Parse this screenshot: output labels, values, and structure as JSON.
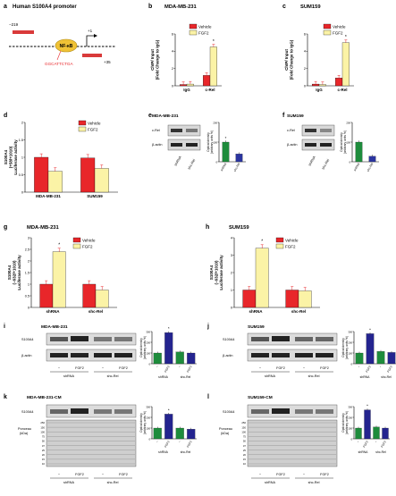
{
  "colors": {
    "red": "#e8262a",
    "yellow": "#fbf3a6",
    "green": "#1e8c3c",
    "blue": "#2b35a0",
    "navy": "#24248f",
    "promoter": "#f0c236",
    "primer": "#d93a3a",
    "site": "#e8262a"
  },
  "panel_a": {
    "letter": "a",
    "title": "Human S100A4 promoter",
    "pos_left": "−219",
    "pos_tss": "+1",
    "pos_right": "+35",
    "nfkb": "NF-κB",
    "site_seq": "GGCATTCTGA"
  },
  "legend": {
    "vehicle": "Vehicle",
    "fgf2": "FGF2"
  },
  "blot_labels": {
    "crel": "c-Rel",
    "actin": "β-actin",
    "s100a4": "S100A4",
    "ponceau": "Ponceau",
    "kda": "(kDa)",
    "minus": "−",
    "fgf2": "FGF2",
    "shrna": "shRNA",
    "shcrel": "shc-Rel"
  },
  "density_label": {
    "line1": "Optical density",
    "line2": "(arbitrary units %)"
  },
  "ladder": [
    "250",
    "150",
    "100",
    "75",
    "50",
    "37",
    "25",
    "20",
    "15",
    "10"
  ],
  "chart_data": [
    {
      "panel": "b",
      "type": "bar",
      "title": "MDA-MB-231",
      "ylabel": "ChIP/ Input (Fold Change to IgG)",
      "categories": [
        "IgG",
        "c-Rel"
      ],
      "ylim": [
        0,
        6
      ],
      "yticks": [
        0,
        2,
        4,
        6
      ],
      "series": [
        {
          "name": "Vehicle",
          "values": [
            0.15,
            1.2
          ]
        },
        {
          "name": "FGF2",
          "values": [
            0.2,
            4.5
          ]
        }
      ],
      "annotation": "*"
    },
    {
      "panel": "c",
      "type": "bar",
      "title": "SUM159",
      "ylabel": "ChIP/ Input (Fold Change to IgG)",
      "categories": [
        "IgG",
        "c-Rel"
      ],
      "ylim": [
        0,
        6
      ],
      "yticks": [
        0,
        2,
        4,
        6
      ],
      "series": [
        {
          "name": "Vehicle",
          "values": [
            0.2,
            0.9
          ]
        },
        {
          "name": "FGF2",
          "values": [
            0.15,
            5.0
          ]
        }
      ],
      "annotation": "*"
    },
    {
      "panel": "d",
      "type": "bar",
      "ylabel": "S100A4 (+58/+1010) Luciferase activity",
      "categories": [
        "MDA-MB-231",
        "SUM159"
      ],
      "ylim": [
        0,
        2
      ],
      "yticks": [
        0,
        0.5,
        1,
        1.5,
        2
      ],
      "series": [
        {
          "name": "Vehicle",
          "values": [
            1.0,
            0.98
          ]
        },
        {
          "name": "FGF2",
          "values": [
            0.6,
            0.68
          ]
        }
      ]
    },
    {
      "panel": "e",
      "type": "bar",
      "title": "MDA-MB-231",
      "categories": [
        "shRNA",
        "shc-Rel"
      ],
      "ylim": [
        0,
        200
      ],
      "yticks": [
        0,
        100,
        200
      ],
      "values": [
        100,
        40
      ],
      "annotation": "*"
    },
    {
      "panel": "f",
      "type": "bar",
      "title": "SUM159",
      "categories": [
        "shRNA",
        "shc-Rel"
      ],
      "ylim": [
        0,
        200
      ],
      "yticks": [
        0,
        100,
        200
      ],
      "values": [
        100,
        28
      ]
    },
    {
      "panel": "g",
      "type": "bar",
      "title": "MDA-MB-231",
      "ylabel": "S100A4 (−632/+1010) Luciferase activity",
      "categories": [
        "shRNA",
        "shc-Rel"
      ],
      "ylim": [
        0,
        3
      ],
      "yticks": [
        0,
        0.5,
        1,
        1.5,
        2,
        2.5,
        3
      ],
      "series": [
        {
          "name": "Vehicle",
          "values": [
            1.0,
            1.0
          ]
        },
        {
          "name": "FGF2",
          "values": [
            2.4,
            0.75
          ]
        }
      ],
      "annotation": "*"
    },
    {
      "panel": "h",
      "type": "bar",
      "title": "SUM159",
      "ylabel": "S100A4 (−632/+1010) Luciferase activity",
      "categories": [
        "shRNA",
        "shc-Rel"
      ],
      "ylim": [
        0,
        4
      ],
      "yticks": [
        0,
        1,
        2,
        3,
        4
      ],
      "series": [
        {
          "name": "Vehicle",
          "values": [
            1.0,
            1.0
          ]
        },
        {
          "name": "FGF2",
          "values": [
            3.4,
            0.95
          ]
        }
      ],
      "annotation": "*"
    },
    {
      "panel": "i",
      "type": "bar",
      "title": "MDA-MB-231",
      "categories": [
        "−",
        "FGF2",
        "−",
        "FGF2"
      ],
      "groups": [
        "shRNA",
        "shc-Rel"
      ],
      "ylim": [
        0,
        300
      ],
      "yticks": [
        0,
        100,
        200,
        300
      ],
      "values": [
        100,
        290,
        110,
        100
      ],
      "annotation": "*"
    },
    {
      "panel": "j",
      "type": "bar",
      "title": "SUM159",
      "categories": [
        "−",
        "FGF2",
        "−",
        "FGF2"
      ],
      "groups": [
        "shRNA",
        "shc-Rel"
      ],
      "ylim": [
        0,
        300
      ],
      "yticks": [
        0,
        100,
        200,
        300
      ],
      "values": [
        100,
        280,
        115,
        105
      ],
      "annotation": "*"
    },
    {
      "panel": "k",
      "type": "bar",
      "title": "MDA-MB-231-CM",
      "categories": [
        "−",
        "FGF2",
        "−",
        "FGF2"
      ],
      "groups": [
        "shRNA",
        "shc-Rel"
      ],
      "ylim": [
        0,
        300
      ],
      "yticks": [
        0,
        100,
        200,
        300
      ],
      "values": [
        100,
        230,
        100,
        90
      ],
      "annotation": "*"
    },
    {
      "panel": "l",
      "type": "bar",
      "title": "SUM159-CM",
      "categories": [
        "−",
        "FGF2",
        "−",
        "FGF2"
      ],
      "groups": [
        "shRNA",
        "shc-Rel"
      ],
      "ylim": [
        0,
        300
      ],
      "yticks": [
        0,
        100,
        200,
        300
      ],
      "values": [
        100,
        270,
        110,
        100
      ],
      "annotation": "*"
    }
  ]
}
